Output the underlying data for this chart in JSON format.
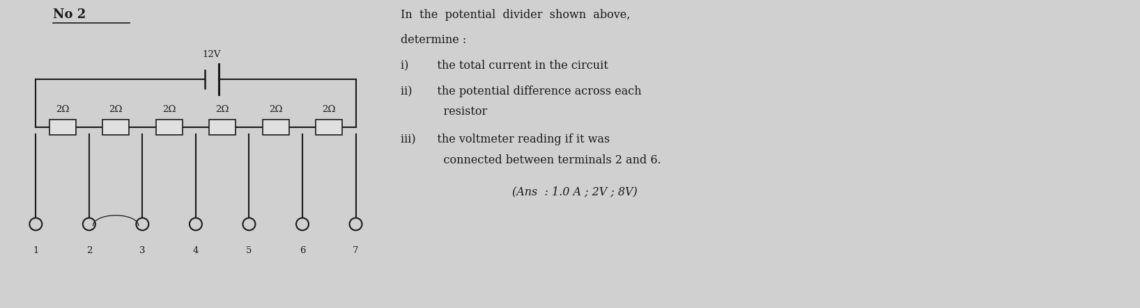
{
  "title": "No 2",
  "voltage_label": "12V",
  "resistor_label": "2Ω",
  "num_resistors": 6,
  "num_terminals": 7,
  "terminal_labels": [
    "1",
    "2",
    "3",
    "4",
    "5",
    "6",
    "7"
  ],
  "question_text_lines": [
    "In  the  potential  divider  shown  above,",
    "determine :",
    "i)        the total current in the circuit",
    "ii)       the potential difference across each",
    "            resistor",
    "iii)      the voltmeter reading if it was",
    "            connected between terminals 2 and 6.",
    "(Ans  : 1.0 A ; 2V ; 8V)"
  ],
  "bg_color": "#d0d0d0",
  "line_color": "#1a1a1a",
  "text_color": "#1a1a1a",
  "resistor_fill": "#e0e0e0",
  "font_size_title": 13,
  "font_size_labels": 9.5,
  "font_size_question": 11.5
}
